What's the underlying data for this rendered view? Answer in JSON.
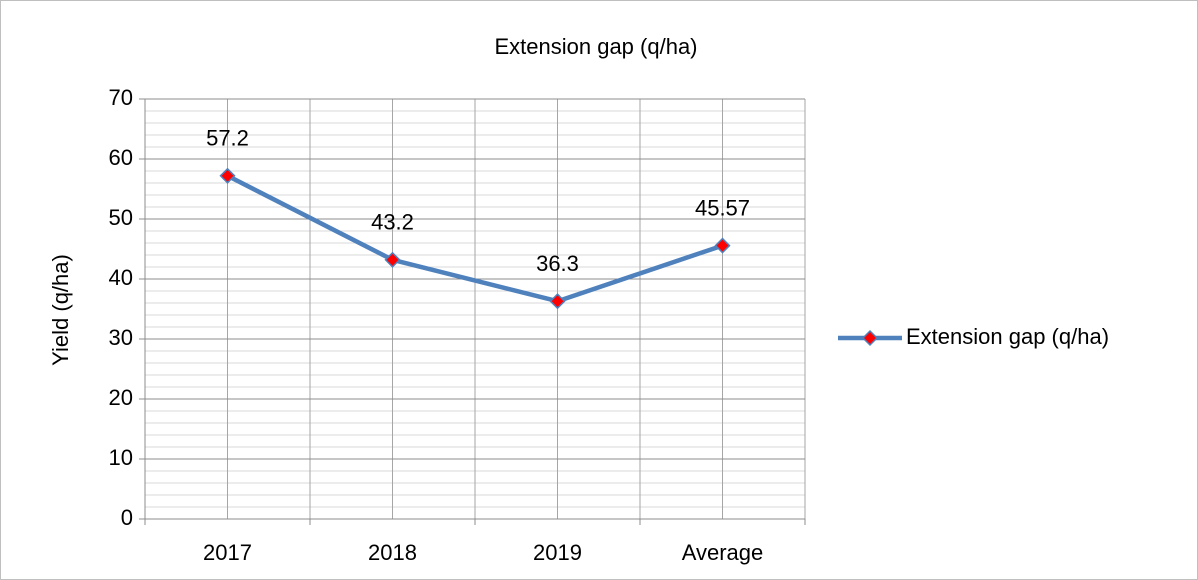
{
  "chart_data": {
    "type": "line",
    "title": "Extension gap  (q/ha)",
    "y_label": "Yield (q/ha)",
    "categories": [
      "2017",
      "2018",
      "2019",
      "Average"
    ],
    "series": [
      {
        "name": "Extension gap  (q/ha)",
        "color": "#4f81bd",
        "marker_color": "#ff0000",
        "values": [
          57.2,
          43.2,
          36.3,
          45.57
        ]
      }
    ],
    "ylim": [
      0,
      70
    ],
    "yticks": [
      0,
      10,
      20,
      30,
      40,
      50,
      60,
      70
    ],
    "yminorticks": [
      2,
      4,
      6,
      8,
      12,
      14,
      16,
      18,
      22,
      24,
      26,
      28,
      32,
      34,
      36,
      38,
      42,
      44,
      46,
      48,
      52,
      54,
      56,
      58,
      62,
      64,
      66,
      68
    ],
    "grid": true,
    "data_labels": true,
    "legend": "right"
  }
}
